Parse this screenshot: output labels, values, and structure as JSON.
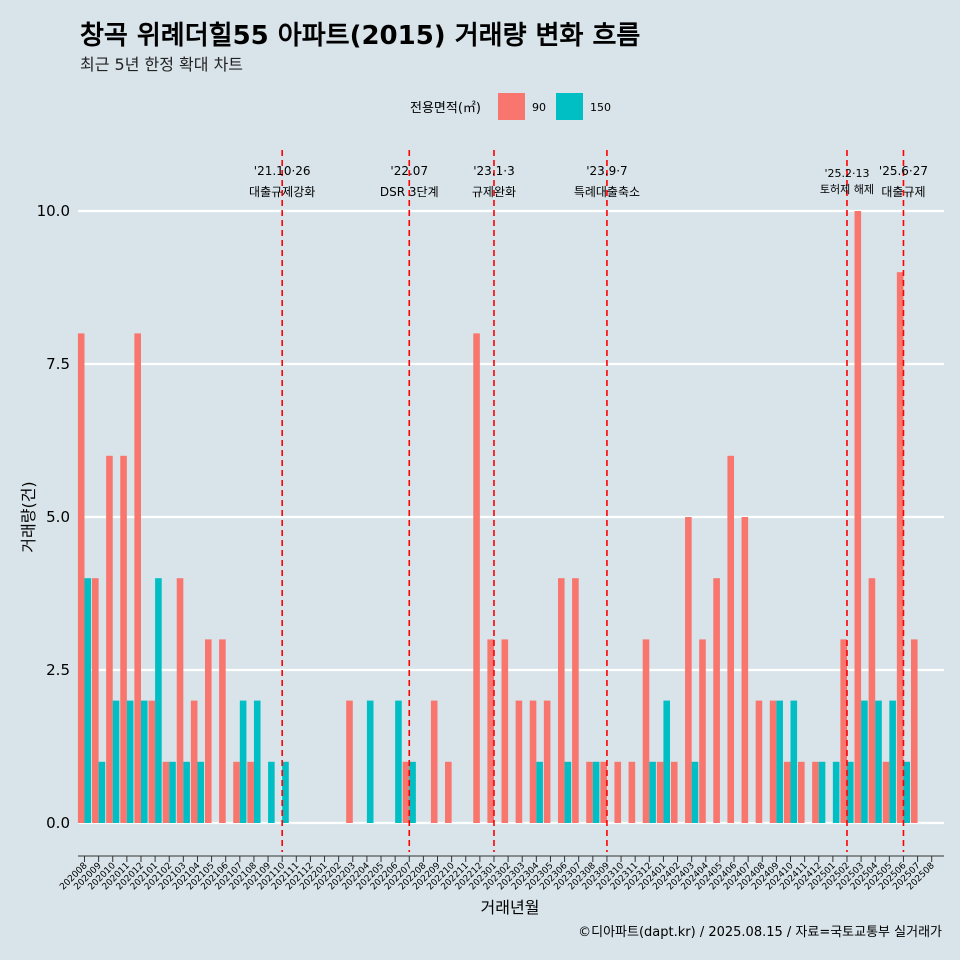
{
  "chart_data": {
    "type": "bar",
    "title": "창곡 위례더힐55 아파트(2015) 거래량 변화 흐름",
    "subtitle": "최근 5년 한정 확대 차트",
    "xlabel": "거래년월",
    "ylabel": "거래량(건)",
    "ylim": [
      0,
      10
    ],
    "yticks": [
      "0.0",
      "2.5",
      "5.0",
      "7.5",
      "10.0"
    ],
    "legend": {
      "title": "전용면적(㎡)",
      "position": "top"
    },
    "categories": [
      "202008",
      "202009",
      "202010",
      "202011",
      "202012",
      "202101",
      "202102",
      "202103",
      "202104",
      "202105",
      "202106",
      "202107",
      "202108",
      "202109",
      "202110",
      "202111",
      "202112",
      "202201",
      "202202",
      "202203",
      "202204",
      "202205",
      "202206",
      "202207",
      "202208",
      "202209",
      "202210",
      "202211",
      "202212",
      "202301",
      "202302",
      "202303",
      "202304",
      "202305",
      "202306",
      "202307",
      "202308",
      "202309",
      "202310",
      "202311",
      "202312",
      "202401",
      "202402",
      "202403",
      "202404",
      "202405",
      "202406",
      "202407",
      "202408",
      "202409",
      "202410",
      "202411",
      "202412",
      "202501",
      "202502",
      "202503",
      "202504",
      "202505",
      "202506",
      "202507",
      "202508"
    ],
    "series": [
      {
        "name": "90",
        "color": "#f8766d",
        "values": [
          8,
          4,
          6,
          6,
          8,
          2,
          1,
          4,
          2,
          3,
          3,
          1,
          1,
          0,
          0,
          0,
          0,
          0,
          0,
          2,
          0,
          0,
          0,
          1,
          0,
          2,
          1,
          0,
          8,
          3,
          3,
          2,
          2,
          2,
          4,
          4,
          1,
          1,
          1,
          1,
          3,
          1,
          1,
          5,
          3,
          4,
          6,
          5,
          2,
          2,
          1,
          1,
          1,
          0,
          3,
          10,
          4,
          1,
          9,
          3,
          0
        ]
      },
      {
        "name": "150",
        "color": "#00bfc4",
        "values": [
          4,
          1,
          2,
          2,
          2,
          4,
          1,
          1,
          1,
          0,
          0,
          2,
          2,
          1,
          1,
          0,
          0,
          0,
          0,
          0,
          2,
          0,
          2,
          1,
          0,
          0,
          0,
          0,
          0,
          0,
          0,
          0,
          1,
          0,
          1,
          0,
          1,
          0,
          0,
          0,
          1,
          2,
          0,
          1,
          0,
          0,
          0,
          0,
          0,
          2,
          2,
          0,
          1,
          1,
          1,
          2,
          2,
          2,
          1,
          0,
          0
        ]
      }
    ],
    "annotations": [
      {
        "date": "'21.10·26",
        "label": "대출규제강화",
        "at": "202110"
      },
      {
        "date": "'22.07",
        "label": "DSR 3단계",
        "at": "202207"
      },
      {
        "date": "'23.1·3",
        "label": "규제완화",
        "at": "202301"
      },
      {
        "date": "'23.9·7",
        "label": "특례대출축소",
        "at": "202309"
      },
      {
        "date": "'25.2·13",
        "label": "토허제 해제",
        "at": "202502"
      },
      {
        "date": "'25.6·27",
        "label": "대출규제",
        "at": "202506"
      }
    ],
    "caption": "©디아파트(dapt.kr) / 2025.08.15 / 자료=국토교통부 실거래가"
  }
}
